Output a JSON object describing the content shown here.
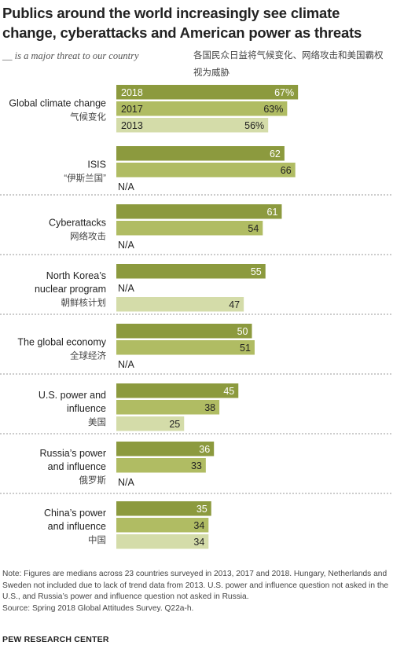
{
  "title": "Publics around the world increasingly see climate change, cyberattacks and American power as threats",
  "subtitle": "__ is a major threat to our country",
  "subtitle_cn": "各国民众日益将气候变化、网络攻击和美国霸权视为威胁",
  "note": "Note: Figures are medians across 23 countries surveyed in 2013, 2017 and 2018. Hungary, Netherlands and Sweden not included due to lack of trend data from 2013. U.S. power and influence question not asked in the U.S., and Russia’s power and influence question not asked in Russia.",
  "source": "Source: Spring 2018 Global Attitudes Survey. Q22a-h.",
  "brand": "PEW RESEARCH CENTER",
  "na_label": "N/A",
  "colors": {
    "y2018": "#8c9a3e",
    "y2017": "#b0bc63",
    "y2013": "#d4dca9",
    "separator": "#999999"
  },
  "chart_data": {
    "type": "bar",
    "orientation": "horizontal",
    "unit": "%",
    "xlim": [
      0,
      100
    ],
    "series_order": [
      "2018",
      "2017",
      "2013"
    ],
    "categories": [
      {
        "label": [
          "Global climate change"
        ],
        "label_cn": "气候变化",
        "values": [
          67,
          63,
          56
        ],
        "series_labels": [
          "2018",
          "2017",
          "2013"
        ],
        "value_suffix": [
          true,
          true,
          true
        ]
      },
      {
        "label": [
          "ISIS"
        ],
        "label_cn": "“伊斯兰国”",
        "values": [
          62,
          66,
          null
        ]
      },
      {
        "label": [
          "Cyberattacks"
        ],
        "label_cn": "网络攻击",
        "values": [
          61,
          54,
          null
        ]
      },
      {
        "label": [
          "North Korea’s",
          "nuclear program"
        ],
        "label_cn": "朝鲜核计划",
        "values": [
          55,
          null,
          47
        ]
      },
      {
        "label": [
          "The global economy"
        ],
        "label_cn": "全球经济",
        "values": [
          50,
          51,
          null
        ]
      },
      {
        "label": [
          "U.S. power and",
          "influence"
        ],
        "label_cn": "美国",
        "values": [
          45,
          38,
          25
        ]
      },
      {
        "label": [
          "Russia’s power",
          "and influence"
        ],
        "label_cn": "俄罗斯",
        "values": [
          36,
          33,
          null
        ]
      },
      {
        "label": [
          "China’s power",
          "and influence"
        ],
        "label_cn": "中国",
        "values": [
          35,
          34,
          34
        ]
      }
    ]
  }
}
